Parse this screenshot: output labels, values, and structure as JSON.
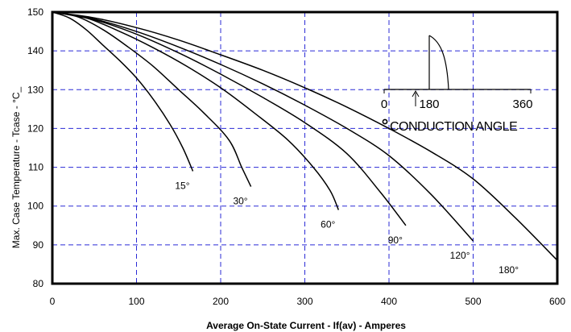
{
  "chart_data": {
    "type": "line",
    "title": "",
    "xlabel": "Average On-State Current - If(av) - Amperes",
    "ylabel": "Max. Case Temperature - Tcase - °C_",
    "xlim": [
      0,
      600
    ],
    "ylim": [
      80,
      150
    ],
    "x_ticks": [
      "0",
      "100",
      "200",
      "300",
      "400",
      "500",
      "600"
    ],
    "y_ticks": [
      "80",
      "90",
      "100",
      "110",
      "120",
      "130",
      "140",
      "150"
    ],
    "grid": true,
    "series": [
      {
        "name": "15°",
        "points": [
          [
            0,
            150
          ],
          [
            20,
            148.5
          ],
          [
            40,
            145.5
          ],
          [
            60,
            141.5
          ],
          [
            80,
            137.5
          ],
          [
            100,
            133
          ],
          [
            120,
            127.5
          ],
          [
            140,
            121
          ],
          [
            155,
            115
          ],
          [
            167,
            109
          ]
        ]
      },
      {
        "name": "30°",
        "points": [
          [
            0,
            150
          ],
          [
            30,
            148.8
          ],
          [
            60,
            145.5
          ],
          [
            90,
            141
          ],
          [
            120,
            136
          ],
          [
            150,
            130
          ],
          [
            180,
            124
          ],
          [
            210,
            117
          ],
          [
            225,
            110
          ],
          [
            236,
            105
          ]
        ]
      },
      {
        "name": "60°",
        "points": [
          [
            0,
            150
          ],
          [
            40,
            148.5
          ],
          [
            80,
            145
          ],
          [
            120,
            140.8
          ],
          [
            160,
            136
          ],
          [
            200,
            130.5
          ],
          [
            240,
            124
          ],
          [
            280,
            117
          ],
          [
            310,
            110
          ],
          [
            330,
            104
          ],
          [
            340,
            99
          ]
        ]
      },
      {
        "name": "90°",
        "points": [
          [
            0,
            150
          ],
          [
            50,
            148
          ],
          [
            100,
            144.3
          ],
          [
            150,
            139.5
          ],
          [
            200,
            134
          ],
          [
            250,
            128
          ],
          [
            300,
            121.5
          ],
          [
            350,
            113.5
          ],
          [
            390,
            103.5
          ],
          [
            420,
            95
          ]
        ]
      },
      {
        "name": "120°",
        "points": [
          [
            0,
            150
          ],
          [
            50,
            148.2
          ],
          [
            100,
            145
          ],
          [
            150,
            141
          ],
          [
            200,
            136.5
          ],
          [
            250,
            131.5
          ],
          [
            300,
            126
          ],
          [
            350,
            120
          ],
          [
            400,
            113
          ],
          [
            450,
            103
          ],
          [
            500,
            91
          ]
        ]
      },
      {
        "name": "180°",
        "points": [
          [
            0,
            150
          ],
          [
            50,
            148.5
          ],
          [
            100,
            146
          ],
          [
            150,
            142.8
          ],
          [
            200,
            139
          ],
          [
            250,
            135
          ],
          [
            300,
            130.5
          ],
          [
            350,
            125.5
          ],
          [
            400,
            120
          ],
          [
            450,
            114
          ],
          [
            500,
            107
          ],
          [
            550,
            97
          ],
          [
            600,
            86
          ]
        ]
      }
    ],
    "inset": {
      "axis_labels": [
        "0",
        "180",
        "360"
      ],
      "caption": "CONDUCTION ANGLE"
    }
  }
}
